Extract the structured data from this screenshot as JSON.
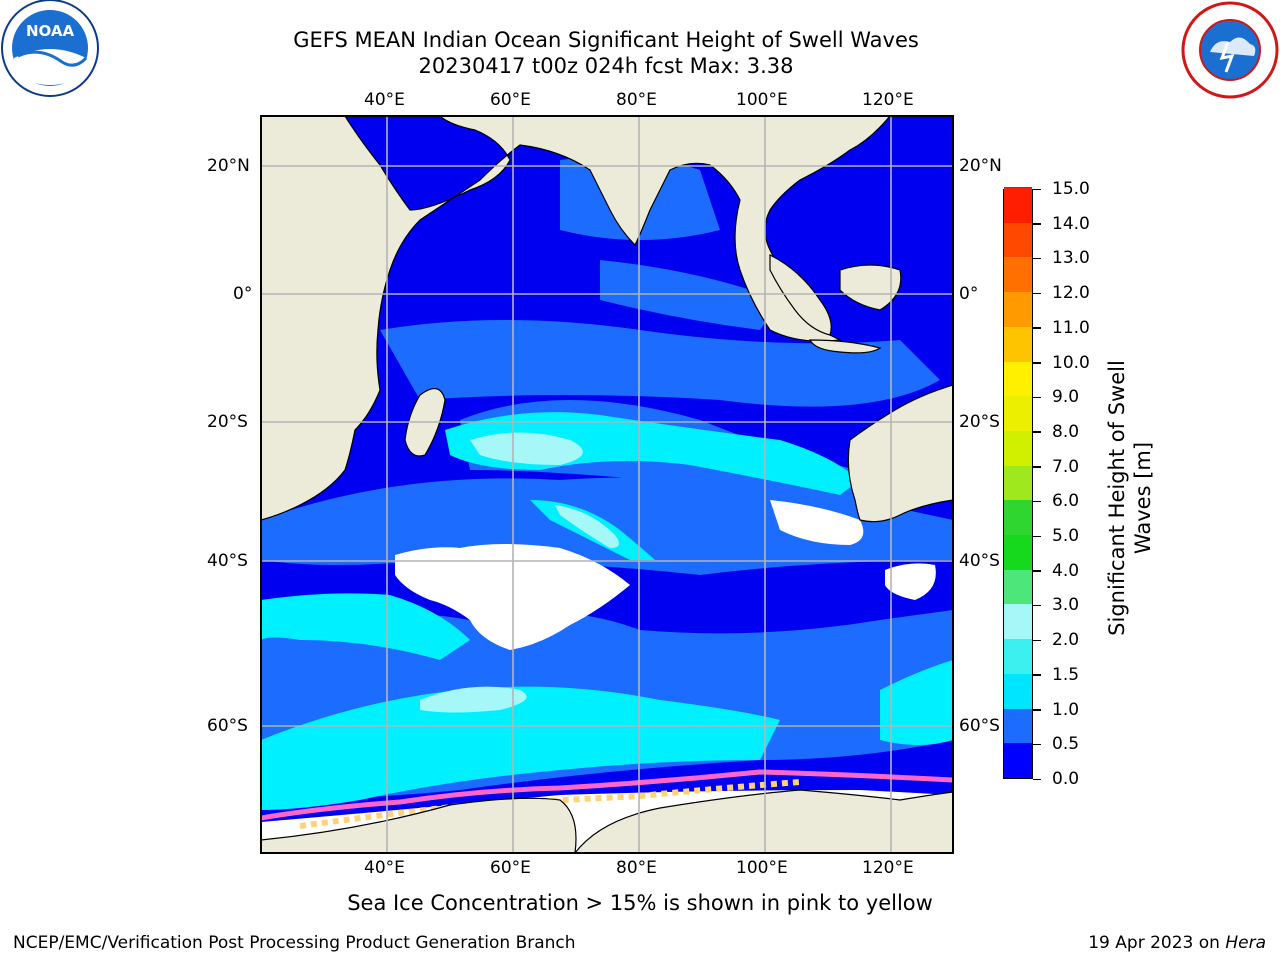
{
  "title": {
    "line1": "GEFS MEAN Indian Ocean Significant Height of Swell Waves",
    "line2": "20230417 t00z 024h fcst   Max: 3.38"
  },
  "logos": {
    "left": "noaa-logo",
    "right": "nws-logo"
  },
  "axes": {
    "lon_labels": [
      "40°E",
      "60°E",
      "80°E",
      "100°E",
      "120°E"
    ],
    "lat_labels_left": [
      "20°N",
      "0°",
      "20°S",
      "40°S",
      "60°S"
    ],
    "lat_labels_right": [
      "20°N",
      "0°",
      "20°S",
      "40°S",
      "60°S"
    ]
  },
  "colorbar": {
    "title_line1": "Significant Height of Swell",
    "title_line2": "Waves [m]",
    "ticks": [
      "0.0",
      "0.5",
      "1.0",
      "1.5",
      "2.0",
      "3.0",
      "4.0",
      "5.0",
      "6.0",
      "7.0",
      "8.0",
      "9.0",
      "10.0",
      "11.0",
      "12.0",
      "13.0",
      "14.0",
      "15.0"
    ],
    "colors": [
      "#0000ff",
      "#1c6cff",
      "#00e5ff",
      "#3cf0f0",
      "#a6f8f8",
      "#4de67a",
      "#16d81c",
      "#2fd62f",
      "#9fe81e",
      "#d0f000",
      "#ecf000",
      "#fff000",
      "#ffc400",
      "#ff9a00",
      "#ff7000",
      "#ff4800",
      "#ff1e00"
    ]
  },
  "footer": {
    "note": "Sea Ice Concentration > 15% is shown in pink to yellow",
    "credit": "NCEP/EMC/Verification Post Processing Product Generation Branch",
    "date": "19 Apr 2023 on ",
    "machine": "Hera"
  },
  "map_colors": {
    "land": "#ecebd9",
    "ocean_dark": "#0000f0",
    "ocean_mid": "#1c6cff",
    "swell_high": "#00f0ff",
    "swell_pale": "#a6f8f8",
    "ice_pink": "#ff66cc",
    "ice_yellow": "#ffd27a",
    "grid": "#b4b4b4"
  }
}
